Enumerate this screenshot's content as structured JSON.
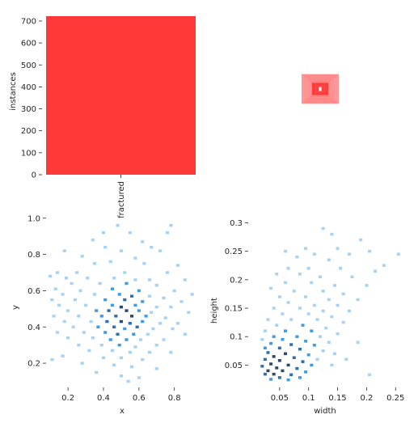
{
  "chart_data": [
    {
      "type": "bar",
      "categories": [
        "fractured"
      ],
      "values": [
        722
      ],
      "xlabel": "",
      "ylabel": "instances",
      "ylim": [
        0,
        722
      ],
      "yticks": [
        0,
        100,
        200,
        300,
        400,
        500,
        600,
        700
      ],
      "color": "#ff3838",
      "grid": false
    },
    {
      "type": "box-overlay",
      "note_from_image": "stacked red bounding-box outlines centred in the frame",
      "center": [
        0.5,
        0.5
      ],
      "boxes": [
        {
          "w": 0.0625,
          "h": 0.055
        },
        {
          "w": 0.068,
          "h": 0.06
        },
        {
          "w": 0.0735,
          "h": 0.065
        },
        {
          "w": 0.079,
          "h": 0.07
        },
        {
          "w": 0.0845,
          "h": 0.075
        },
        {
          "w": 0.09,
          "h": 0.08
        },
        {
          "w": 0.095,
          "h": 0.085
        },
        {
          "w": 0.1,
          "h": 0.09
        },
        {
          "w": 0.1055,
          "h": 0.095
        },
        {
          "w": 0.11,
          "h": 0.1
        },
        {
          "w": 0.116,
          "h": 0.106
        },
        {
          "w": 0.121,
          "h": 0.112
        },
        {
          "w": 0.1265,
          "h": 0.117
        },
        {
          "w": 0.132,
          "h": 0.123
        },
        {
          "w": 0.1375,
          "h": 0.128
        },
        {
          "w": 0.143,
          "h": 0.134
        },
        {
          "w": 0.148,
          "h": 0.14
        },
        {
          "w": 0.154,
          "h": 0.146
        },
        {
          "w": 0.16,
          "h": 0.151
        },
        {
          "w": 0.165,
          "h": 0.157
        },
        {
          "w": 0.171,
          "h": 0.163
        },
        {
          "w": 0.176,
          "h": 0.168
        },
        {
          "w": 0.182,
          "h": 0.174
        },
        {
          "w": 0.187,
          "h": 0.18
        }
      ],
      "color": "#ff3838",
      "center_color": "#ffffff"
    },
    {
      "type": "heatmap",
      "title": "",
      "xlabel": "x",
      "ylabel": "y",
      "xlim": [
        0.09,
        0.92
      ],
      "ylim": [
        0.08,
        0.99
      ],
      "xticks": [
        0.2,
        0.4,
        0.6,
        0.8
      ],
      "yticks": [
        0.2,
        0.4,
        0.6,
        0.8,
        1.0
      ],
      "bin_size": [
        0.019,
        0.0155
      ],
      "cells": [
        [
          0.48,
          0.96,
          1
        ],
        [
          0.78,
          0.96,
          1
        ],
        [
          0.4,
          0.92,
          1
        ],
        [
          0.55,
          0.92,
          1
        ],
        [
          0.76,
          0.92,
          1
        ],
        [
          0.34,
          0.88,
          1
        ],
        [
          0.62,
          0.87,
          1
        ],
        [
          0.41,
          0.84,
          1
        ],
        [
          0.67,
          0.84,
          1
        ],
        [
          0.18,
          0.82,
          1
        ],
        [
          0.5,
          0.82,
          1
        ],
        [
          0.72,
          0.82,
          1
        ],
        [
          0.28,
          0.79,
          1
        ],
        [
          0.58,
          0.78,
          1
        ],
        [
          0.44,
          0.76,
          1
        ],
        [
          0.35,
          0.75,
          1
        ],
        [
          0.63,
          0.75,
          1
        ],
        [
          0.82,
          0.74,
          1
        ],
        [
          0.14,
          0.7,
          1
        ],
        [
          0.25,
          0.7,
          1
        ],
        [
          0.52,
          0.7,
          1
        ],
        [
          0.76,
          0.7,
          1
        ],
        [
          0.1,
          0.68,
          1
        ],
        [
          0.19,
          0.67,
          1
        ],
        [
          0.31,
          0.67,
          1
        ],
        [
          0.46,
          0.67,
          1
        ],
        [
          0.58,
          0.66,
          1
        ],
        [
          0.66,
          0.66,
          1
        ],
        [
          0.86,
          0.66,
          1
        ],
        [
          0.22,
          0.64,
          1
        ],
        [
          0.38,
          0.64,
          1
        ],
        [
          0.53,
          0.64,
          2
        ],
        [
          0.7,
          0.63,
          1
        ],
        [
          0.13,
          0.61,
          1
        ],
        [
          0.27,
          0.6,
          1
        ],
        [
          0.45,
          0.61,
          2
        ],
        [
          0.6,
          0.6,
          2
        ],
        [
          0.8,
          0.6,
          1
        ],
        [
          0.9,
          0.58,
          1
        ],
        [
          0.17,
          0.58,
          1
        ],
        [
          0.35,
          0.58,
          1
        ],
        [
          0.49,
          0.58,
          2
        ],
        [
          0.56,
          0.57,
          3
        ],
        [
          0.66,
          0.57,
          1
        ],
        [
          0.74,
          0.56,
          1
        ],
        [
          0.11,
          0.55,
          1
        ],
        [
          0.24,
          0.55,
          1
        ],
        [
          0.41,
          0.55,
          2
        ],
        [
          0.52,
          0.55,
          3
        ],
        [
          0.62,
          0.54,
          2
        ],
        [
          0.84,
          0.54,
          1
        ],
        [
          0.15,
          0.52,
          1
        ],
        [
          0.3,
          0.52,
          1
        ],
        [
          0.45,
          0.52,
          2
        ],
        [
          0.5,
          0.51,
          4
        ],
        [
          0.58,
          0.52,
          2
        ],
        [
          0.7,
          0.51,
          1
        ],
        [
          0.78,
          0.51,
          1
        ],
        [
          0.2,
          0.49,
          1
        ],
        [
          0.36,
          0.49,
          2
        ],
        [
          0.43,
          0.49,
          3
        ],
        [
          0.53,
          0.49,
          4
        ],
        [
          0.6,
          0.49,
          2
        ],
        [
          0.67,
          0.48,
          1
        ],
        [
          0.88,
          0.48,
          1
        ],
        [
          0.12,
          0.46,
          1
        ],
        [
          0.26,
          0.46,
          1
        ],
        [
          0.39,
          0.46,
          2
        ],
        [
          0.47,
          0.46,
          3
        ],
        [
          0.56,
          0.46,
          4
        ],
        [
          0.64,
          0.46,
          2
        ],
        [
          0.75,
          0.45,
          1
        ],
        [
          0.18,
          0.43,
          1
        ],
        [
          0.33,
          0.43,
          1
        ],
        [
          0.42,
          0.43,
          3
        ],
        [
          0.5,
          0.43,
          4
        ],
        [
          0.55,
          0.42,
          3
        ],
        [
          0.62,
          0.43,
          2
        ],
        [
          0.72,
          0.42,
          1
        ],
        [
          0.82,
          0.42,
          1
        ],
        [
          0.23,
          0.4,
          1
        ],
        [
          0.37,
          0.4,
          2
        ],
        [
          0.46,
          0.4,
          3
        ],
        [
          0.52,
          0.39,
          2
        ],
        [
          0.59,
          0.4,
          3
        ],
        [
          0.68,
          0.39,
          1
        ],
        [
          0.79,
          0.39,
          1
        ],
        [
          0.14,
          0.37,
          1
        ],
        [
          0.29,
          0.37,
          1
        ],
        [
          0.41,
          0.37,
          2
        ],
        [
          0.48,
          0.36,
          3
        ],
        [
          0.57,
          0.36,
          2
        ],
        [
          0.65,
          0.36,
          1
        ],
        [
          0.86,
          0.36,
          1
        ],
        [
          0.2,
          0.34,
          1
        ],
        [
          0.34,
          0.34,
          1
        ],
        [
          0.44,
          0.33,
          2
        ],
        [
          0.53,
          0.33,
          2
        ],
        [
          0.61,
          0.33,
          1
        ],
        [
          0.74,
          0.33,
          1
        ],
        [
          0.26,
          0.3,
          1
        ],
        [
          0.39,
          0.3,
          1
        ],
        [
          0.49,
          0.3,
          2
        ],
        [
          0.58,
          0.29,
          1
        ],
        [
          0.7,
          0.3,
          1
        ],
        [
          0.32,
          0.27,
          1
        ],
        [
          0.45,
          0.27,
          1
        ],
        [
          0.55,
          0.26,
          1
        ],
        [
          0.66,
          0.26,
          1
        ],
        [
          0.78,
          0.26,
          1
        ],
        [
          0.17,
          0.24,
          1
        ],
        [
          0.4,
          0.23,
          1
        ],
        [
          0.5,
          0.23,
          1
        ],
        [
          0.62,
          0.22,
          1
        ],
        [
          0.11,
          0.22,
          1
        ],
        [
          0.28,
          0.2,
          1
        ],
        [
          0.46,
          0.19,
          1
        ],
        [
          0.56,
          0.18,
          1
        ],
        [
          0.7,
          0.17,
          1
        ],
        [
          0.36,
          0.15,
          1
        ],
        [
          0.5,
          0.13,
          1
        ],
        [
          0.6,
          0.12,
          1
        ],
        [
          0.54,
          0.1,
          1
        ]
      ],
      "color_scale": [
        "#a6d2f5",
        "#3f9be6",
        "#2e6fb0",
        "#2b4a6b"
      ],
      "grid": false
    },
    {
      "type": "heatmap",
      "title": "",
      "xlabel": "width",
      "ylabel": "height",
      "xlim": [
        0.0,
        0.265
      ],
      "ylim": [
        0.015,
        0.305
      ],
      "xticks": [
        0.05,
        0.1,
        0.15,
        0.2,
        0.25
      ],
      "yticks": [
        0.05,
        0.1,
        0.15,
        0.2,
        0.25,
        0.3
      ],
      "bin_size": [
        0.0056,
        0.005
      ],
      "cells": [
        [
          0.125,
          0.29,
          1
        ],
        [
          0.14,
          0.28,
          1
        ],
        [
          0.19,
          0.27,
          1
        ],
        [
          0.255,
          0.245,
          1
        ],
        [
          0.095,
          0.255,
          1
        ],
        [
          0.15,
          0.255,
          1
        ],
        [
          0.205,
          0.25,
          1
        ],
        [
          0.06,
          0.25,
          1
        ],
        [
          0.11,
          0.245,
          1
        ],
        [
          0.17,
          0.245,
          1
        ],
        [
          0.08,
          0.24,
          1
        ],
        [
          0.135,
          0.235,
          1
        ],
        [
          0.23,
          0.225,
          1
        ],
        [
          0.065,
          0.22,
          1
        ],
        [
          0.1,
          0.22,
          1
        ],
        [
          0.155,
          0.22,
          1
        ],
        [
          0.215,
          0.215,
          1
        ],
        [
          0.045,
          0.21,
          1
        ],
        [
          0.085,
          0.21,
          1
        ],
        [
          0.12,
          0.205,
          1
        ],
        [
          0.175,
          0.205,
          1
        ],
        [
          0.06,
          0.195,
          1
        ],
        [
          0.105,
          0.195,
          1
        ],
        [
          0.145,
          0.19,
          1
        ],
        [
          0.2,
          0.19,
          1
        ],
        [
          0.035,
          0.185,
          1
        ],
        [
          0.075,
          0.18,
          1
        ],
        [
          0.125,
          0.18,
          1
        ],
        [
          0.16,
          0.175,
          1
        ],
        [
          0.05,
          0.17,
          1
        ],
        [
          0.095,
          0.17,
          1
        ],
        [
          0.135,
          0.165,
          1
        ],
        [
          0.185,
          0.165,
          1
        ],
        [
          0.065,
          0.16,
          1
        ],
        [
          0.11,
          0.155,
          1
        ],
        [
          0.15,
          0.155,
          1
        ],
        [
          0.04,
          0.15,
          1
        ],
        [
          0.085,
          0.15,
          1
        ],
        [
          0.125,
          0.145,
          1
        ],
        [
          0.17,
          0.145,
          1
        ],
        [
          0.055,
          0.14,
          1
        ],
        [
          0.1,
          0.14,
          1
        ],
        [
          0.14,
          0.135,
          1
        ],
        [
          0.03,
          0.13,
          1
        ],
        [
          0.07,
          0.13,
          1
        ],
        [
          0.115,
          0.13,
          1
        ],
        [
          0.16,
          0.125,
          1
        ],
        [
          0.045,
          0.12,
          1
        ],
        [
          0.09,
          0.12,
          2
        ],
        [
          0.13,
          0.115,
          1
        ],
        [
          0.025,
          0.11,
          1
        ],
        [
          0.06,
          0.11,
          2
        ],
        [
          0.105,
          0.11,
          2
        ],
        [
          0.15,
          0.105,
          1
        ],
        [
          0.04,
          0.1,
          2
        ],
        [
          0.08,
          0.1,
          2
        ],
        [
          0.12,
          0.1,
          1
        ],
        [
          0.02,
          0.095,
          1
        ],
        [
          0.055,
          0.095,
          2
        ],
        [
          0.095,
          0.092,
          2
        ],
        [
          0.135,
          0.09,
          1
        ],
        [
          0.035,
          0.088,
          2
        ],
        [
          0.07,
          0.086,
          3
        ],
        [
          0.11,
          0.085,
          2
        ],
        [
          0.025,
          0.08,
          2
        ],
        [
          0.05,
          0.08,
          3
        ],
        [
          0.085,
          0.078,
          3
        ],
        [
          0.125,
          0.075,
          1
        ],
        [
          0.03,
          0.072,
          3
        ],
        [
          0.06,
          0.07,
          4
        ],
        [
          0.1,
          0.068,
          2
        ],
        [
          0.04,
          0.065,
          4
        ],
        [
          0.075,
          0.063,
          3
        ],
        [
          0.115,
          0.06,
          1
        ],
        [
          0.025,
          0.06,
          3
        ],
        [
          0.05,
          0.058,
          4
        ],
        [
          0.09,
          0.056,
          3
        ],
        [
          0.035,
          0.052,
          4
        ],
        [
          0.065,
          0.05,
          4
        ],
        [
          0.105,
          0.05,
          2
        ],
        [
          0.02,
          0.048,
          3
        ],
        [
          0.045,
          0.045,
          4
        ],
        [
          0.08,
          0.044,
          3
        ],
        [
          0.03,
          0.04,
          4
        ],
        [
          0.055,
          0.04,
          4
        ],
        [
          0.095,
          0.038,
          2
        ],
        [
          0.025,
          0.034,
          3
        ],
        [
          0.04,
          0.034,
          4
        ],
        [
          0.07,
          0.033,
          3
        ],
        [
          0.05,
          0.028,
          3
        ],
        [
          0.085,
          0.028,
          2
        ],
        [
          0.035,
          0.025,
          2
        ],
        [
          0.065,
          0.024,
          2
        ],
        [
          0.205,
          0.033,
          1
        ],
        [
          0.165,
          0.06,
          1
        ],
        [
          0.145,
          0.07,
          1
        ],
        [
          0.185,
          0.09,
          1
        ],
        [
          0.14,
          0.05,
          1
        ]
      ],
      "color_scale": [
        "#a6d2f5",
        "#3f9be6",
        "#2e6fb0",
        "#2b4a6b"
      ],
      "grid": false
    }
  ]
}
